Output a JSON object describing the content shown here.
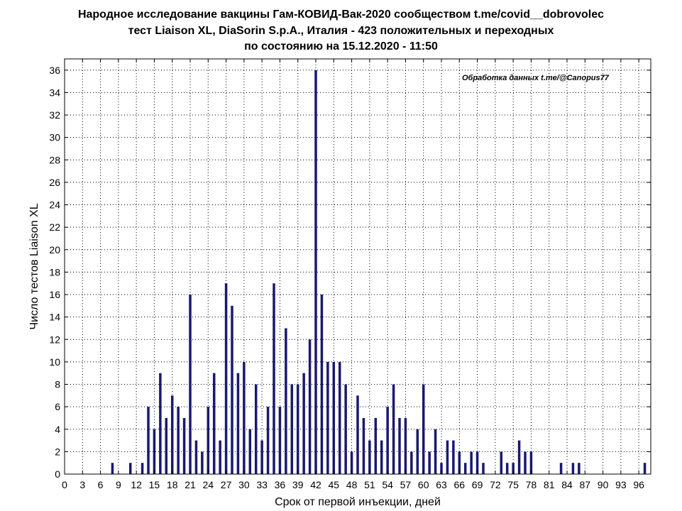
{
  "chart_data": {
    "type": "bar",
    "title_lines": [
      "Народное исследование вакцины Гам-КОВИД-Вак-2020 сообществом t.me/covid__dobrovolec",
      "тест Liaison XL, DiaSorin S.p.A., Италия - 423 положительных и переходных",
      "по состоянию на 15.12.2020 - 11:50"
    ],
    "xlabel": "Срок от первой инъекции, дней",
    "ylabel": "Число тестов Liaison XL",
    "annotation": "Обработка данных t.me/@Canopus77",
    "xlim": [
      0,
      98
    ],
    "ylim": [
      0,
      37
    ],
    "x_ticks": [
      0,
      3,
      6,
      9,
      12,
      15,
      18,
      21,
      24,
      27,
      30,
      33,
      36,
      39,
      42,
      45,
      48,
      51,
      54,
      57,
      60,
      63,
      66,
      69,
      72,
      75,
      78,
      81,
      84,
      87,
      90,
      93,
      96
    ],
    "y_ticks": [
      0,
      2,
      4,
      6,
      8,
      10,
      12,
      14,
      16,
      18,
      20,
      22,
      24,
      26,
      28,
      30,
      32,
      34,
      36
    ],
    "grid": true,
    "bar_color": "#191970",
    "x": [
      8,
      11,
      13,
      14,
      15,
      16,
      17,
      18,
      19,
      20,
      21,
      22,
      23,
      24,
      25,
      26,
      27,
      28,
      29,
      30,
      31,
      32,
      33,
      34,
      35,
      36,
      37,
      38,
      39,
      40,
      41,
      42,
      43,
      44,
      45,
      46,
      47,
      48,
      49,
      50,
      51,
      52,
      53,
      54,
      55,
      56,
      57,
      58,
      59,
      60,
      61,
      62,
      63,
      64,
      65,
      66,
      67,
      68,
      69,
      70,
      71,
      73,
      74,
      75,
      76,
      77,
      78,
      79,
      83,
      85,
      86,
      97
    ],
    "values": [
      1,
      1,
      1,
      6,
      4,
      9,
      5,
      7,
      6,
      5,
      16,
      3,
      2,
      6,
      9,
      3,
      17,
      15,
      9,
      10,
      4,
      8,
      3,
      6,
      17,
      6,
      13,
      8,
      8,
      9,
      12,
      36,
      16,
      10,
      10,
      10,
      8,
      2,
      7,
      5,
      3,
      5,
      3,
      6,
      8,
      5,
      5,
      2,
      4,
      8,
      2,
      4,
      1,
      3,
      3,
      2,
      1,
      2,
      2,
      1,
      0,
      2,
      1,
      1,
      3,
      2,
      2,
      0,
      1,
      1,
      1,
      1
    ]
  }
}
